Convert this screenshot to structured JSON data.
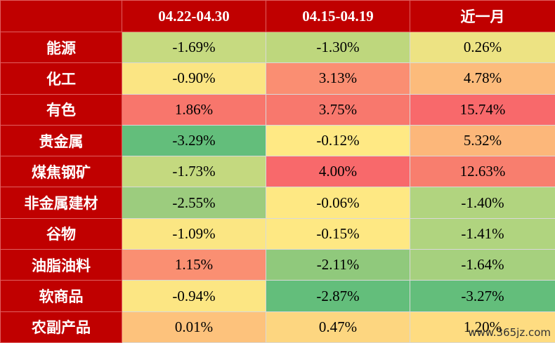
{
  "table": {
    "header": [
      "04.22-04.30",
      "04.15-04.19",
      "近一月"
    ],
    "rows": [
      {
        "label": "能源",
        "cells": [
          "-1.69%",
          "-1.30%",
          "0.26%"
        ],
        "colors": [
          "#c6da80",
          "#bed77d",
          "#ede383"
        ]
      },
      {
        "label": "化工",
        "cells": [
          "-0.90%",
          "3.13%",
          "4.78%"
        ],
        "colors": [
          "#fbe583",
          "#fa8e72",
          "#fcbb7b"
        ]
      },
      {
        "label": "有色",
        "cells": [
          "1.86%",
          "3.75%",
          "15.74%"
        ],
        "colors": [
          "#f8766c",
          "#f8786d",
          "#f8696b"
        ]
      },
      {
        "label": "贵金属",
        "cells": [
          "-3.29%",
          "-0.12%",
          "5.32%"
        ],
        "colors": [
          "#63be7b",
          "#ffe984",
          "#fcb77a"
        ]
      },
      {
        "label": "煤焦钢矿",
        "cells": [
          "-1.73%",
          "4.00%",
          "12.63%"
        ],
        "colors": [
          "#c4d97f",
          "#f8696b",
          "#f87e6e"
        ]
      },
      {
        "label": "非金属建材",
        "cells": [
          "-2.55%",
          "-0.06%",
          "-1.40%"
        ],
        "colors": [
          "#9ccc7e",
          "#fee883",
          "#b1d47f"
        ]
      },
      {
        "label": "谷物",
        "cells": [
          "-1.09%",
          "-0.15%",
          "-1.41%"
        ],
        "colors": [
          "#fbe683",
          "#fee883",
          "#b0d47f"
        ]
      },
      {
        "label": "油脂油料",
        "cells": [
          "1.15%",
          "-2.11%",
          "-1.64%"
        ],
        "colors": [
          "#fa8f72",
          "#90c97c",
          "#a6d07e"
        ]
      },
      {
        "label": "软商品",
        "cells": [
          "-0.94%",
          "-2.87%",
          "-3.27%"
        ],
        "colors": [
          "#fce683",
          "#63be7b",
          "#63be7b"
        ]
      },
      {
        "label": "农副产品",
        "cells": [
          "0.01%",
          "0.47%",
          "1.20%"
        ],
        "colors": [
          "#fdc27c",
          "#fdd680",
          "#fedc81"
        ]
      }
    ]
  },
  "watermark": "www.365jz.com"
}
